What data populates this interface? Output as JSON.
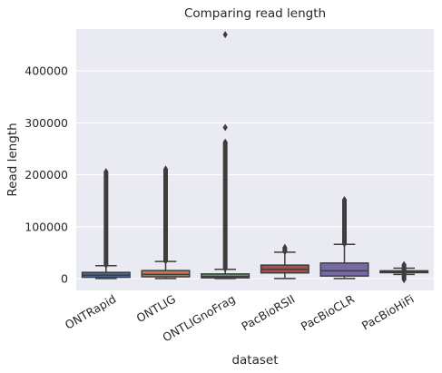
{
  "chart_data": {
    "type": "box",
    "title": "Comparing read length",
    "xlabel": "dataset",
    "ylabel": "Read length",
    "yticks": [
      0,
      100000,
      200000,
      300000,
      400000
    ],
    "ytick_labels": [
      "0",
      "100000",
      "200000",
      "300000",
      "400000"
    ],
    "ylim": [
      -20000,
      480000
    ],
    "grid": true,
    "categories": [
      "ONTRapid",
      "ONTLIG",
      "ONTLIGnoFrag",
      "PacBioRSII",
      "PacBioCLR",
      "PacBioHiFi"
    ],
    "colors": [
      "#4c72b0",
      "#dd8452",
      "#55a868",
      "#c44e52",
      "#8172b3",
      "#937860"
    ],
    "boxes": [
      {
        "category": "ONTRapid",
        "whisker_low": 300,
        "q1": 2500,
        "median": 6500,
        "q3": 12000,
        "whisker_high": 25000,
        "outlier_min": 26000,
        "outlier_max": 206000
      },
      {
        "category": "ONTLIG",
        "whisker_low": 300,
        "q1": 3500,
        "median": 8000,
        "q3": 15500,
        "whisker_high": 33000,
        "outlier_min": 34000,
        "outlier_max": 211000
      },
      {
        "category": "ONTLIGnoFrag",
        "whisker_low": 300,
        "q1": 1500,
        "median": 4000,
        "q3": 9000,
        "whisker_high": 18000,
        "outlier_min": 19000,
        "outlier_max": 263000,
        "extra_outliers": [
          291000,
          470000
        ]
      },
      {
        "category": "PacBioRSII",
        "whisker_low": 300,
        "q1": 11000,
        "median": 18000,
        "q3": 26000,
        "whisker_high": 51000,
        "outlier_min": 52000,
        "outlier_max": 60000
      },
      {
        "category": "PacBioCLR",
        "whisker_low": 300,
        "q1": 5000,
        "median": 15000,
        "q3": 30000,
        "whisker_high": 66000,
        "outlier_min": 67000,
        "outlier_max": 152000
      },
      {
        "category": "PacBioHiFi",
        "whisker_low": 8000,
        "q1": 11500,
        "median": 13000,
        "q3": 15000,
        "whisker_high": 20000,
        "outlier_min": -2000,
        "outlier_max": 27000
      }
    ]
  }
}
